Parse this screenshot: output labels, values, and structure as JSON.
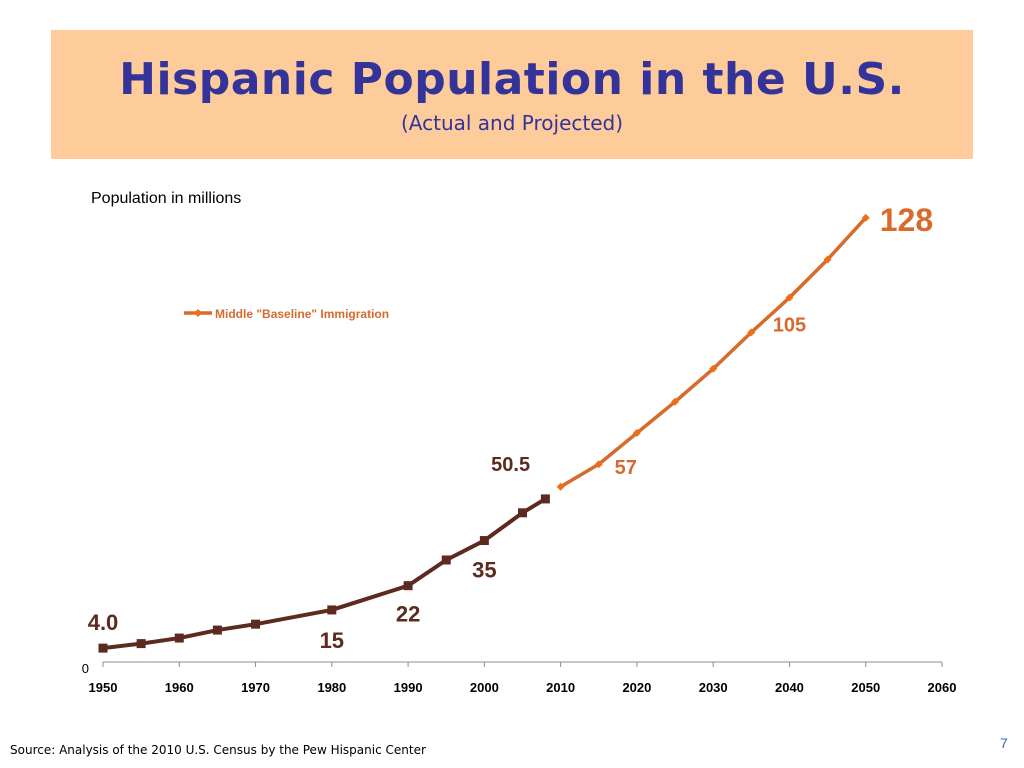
{
  "header": {
    "title": "Hispanic Population in the U.S.",
    "subtitle": "(Actual and Projected)"
  },
  "footer": {
    "source": "Source: Analysis of the 2010 U.S. Census by the Pew Hispanic Center",
    "page_number": "7"
  },
  "colors": {
    "title_bg": "#fdcc9a",
    "title_text": "#33339a",
    "actual_series": "#5c2a1e",
    "projected_series": "#d86a2c",
    "projected_marker": "#ef6f17"
  },
  "chart_data": {
    "type": "line",
    "ylabel": "Population in millions",
    "xlim": [
      1950,
      2060
    ],
    "ylim": [
      0,
      140
    ],
    "x_ticks": [
      "1950",
      "1960",
      "1970",
      "1980",
      "1990",
      "2000",
      "2010",
      "2020",
      "2030",
      "2040",
      "2050",
      "2060"
    ],
    "y_tick_labels": [
      "0"
    ],
    "grid": false,
    "legend_position": "upper-left",
    "series": [
      {
        "marker": "square",
        "x": [
          1950,
          1955,
          1960,
          1965,
          1970,
          1980,
          1990,
          1995,
          2000,
          2005,
          2008
        ],
        "y": [
          4.0,
          5.3,
          6.9,
          9.2,
          10.9,
          15,
          22,
          29.4,
          35,
          43,
          47
        ]
      },
      {
        "name": "Middle \"Baseline\" Immigration",
        "marker": "diamond",
        "x": [
          2010,
          2015,
          2020,
          2025,
          2030,
          2035,
          2040,
          2045,
          2050
        ],
        "y": [
          50.5,
          57,
          66,
          75,
          84.5,
          95,
          105,
          116,
          128
        ]
      }
    ],
    "data_labels": [
      {
        "text": "4.0",
        "series": 0,
        "x": 1950,
        "y": 4.0
      },
      {
        "text": "15",
        "series": 0,
        "x": 1980,
        "y": 15
      },
      {
        "text": "22",
        "series": 0,
        "x": 1990,
        "y": 22
      },
      {
        "text": "35",
        "series": 0,
        "x": 2000,
        "y": 35
      },
      {
        "text": "50.5",
        "series": 0,
        "x": 2010,
        "y": 50.5
      },
      {
        "text": "57",
        "series": 1,
        "x": 2015,
        "y": 57
      },
      {
        "text": "105",
        "series": 1,
        "x": 2040,
        "y": 105
      },
      {
        "text": "128",
        "series": 1,
        "x": 2050,
        "y": 128
      }
    ]
  }
}
